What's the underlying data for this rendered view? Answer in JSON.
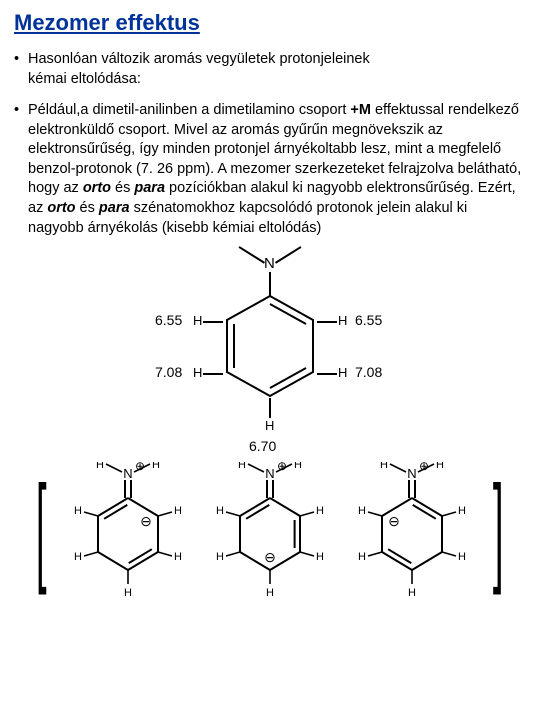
{
  "title_color": "#003399",
  "title": "Mezomer effektus",
  "bullets": [
    {
      "lines": [
        "Hasonlóan változik aromás vegyületek protonjeleinek",
        "kémai eltolódása:"
      ]
    },
    {
      "rich": [
        {
          "t": "Például,a  dimetil-anilinben a dimetilamino csoport "
        },
        {
          "t": "+M",
          "bold": true
        },
        {
          "t": " effektussal rendelkező elektronküldő csoport.  Mivel az aromás gyűrűn megnövekszik az elektronsűrűség, így minden protonjel árnyékoltabb lesz, mint a megfelelő benzol-protonok (7. 26 ppm)."
        },
        {
          "t": " A mezomer szerkezeteket felrajzolva belátható, hogy az "
        },
        {
          "t": "orto",
          "bi": true
        },
        {
          "t": " és "
        },
        {
          "t": "para",
          "bi": true
        },
        {
          "t": " pozíciókban alakul ki nagyobb elektronsűrűség. Ezért, az "
        },
        {
          "t": "orto",
          "bi": true
        },
        {
          "t": " és "
        },
        {
          "t": "para",
          "bi": true
        },
        {
          "t": " szénatomokhoz kapcsolódó protonok jelein alakul ki nagyobb árnyékolás (kisebb kémiai eltolódás)"
        }
      ]
    }
  ],
  "main_molecule": {
    "N_label": "N",
    "shifts": {
      "ortho_left": "6.55",
      "ortho_right": "6.55",
      "meta_left": "7.08",
      "meta_right": "7.08",
      "para": "6.70"
    },
    "H": "H",
    "ring_stroke": "#000000",
    "font_size_shift": 14
  },
  "resonance": {
    "neg_symbol": "⊖",
    "pos_symbol": "⊕",
    "N": "N",
    "H": "H",
    "bracket_scale": 1.0
  }
}
